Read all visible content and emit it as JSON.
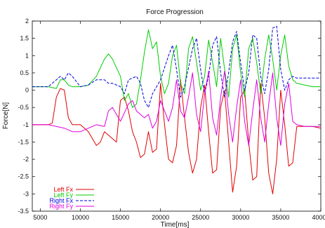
{
  "chart_data": {
    "type": "line",
    "title": "Force Progression",
    "xlabel": "Time[ms]",
    "ylabel": "Force[N]",
    "xlim": [
      4000,
      40000
    ],
    "ylim": [
      -3.5,
      2
    ],
    "xticks": [
      5000,
      10000,
      15000,
      20000,
      25000,
      30000,
      35000,
      40000
    ],
    "yticks": [
      -3.5,
      -3,
      -2.5,
      -2,
      -1.5,
      -1,
      -0.5,
      0,
      0.5,
      1,
      1.5,
      2
    ],
    "xtick_labels": [
      "5000",
      "10000",
      "15000",
      "20000",
      "25000",
      "30000",
      "35000",
      "40000"
    ],
    "ytick_labels": [
      "-3.5",
      "-3",
      "-2.5",
      "-2",
      "-1.5",
      "-1",
      "-0.5",
      "0",
      "0.5",
      "1",
      "1.5",
      "2"
    ],
    "grid": false,
    "legend_position": "bottom-left",
    "series": [
      {
        "name": "Left Fx",
        "color": "#e00000",
        "dash": "solid",
        "points": [
          [
            4000,
            -1.0
          ],
          [
            5000,
            -1.0
          ],
          [
            6000,
            -1.0
          ],
          [
            6500,
            -0.95
          ],
          [
            7000,
            -0.2
          ],
          [
            7500,
            0.05
          ],
          [
            8000,
            0.0
          ],
          [
            8500,
            -0.8
          ],
          [
            9000,
            -1.0
          ],
          [
            10000,
            -1.0
          ],
          [
            11000,
            -1.2
          ],
          [
            12000,
            -1.6
          ],
          [
            12500,
            -1.5
          ],
          [
            13000,
            -1.2
          ],
          [
            13500,
            -1.3
          ],
          [
            14500,
            -1.5
          ],
          [
            15000,
            -0.3
          ],
          [
            15500,
            -0.2
          ],
          [
            16000,
            -0.6
          ],
          [
            16500,
            -1.2
          ],
          [
            17000,
            -1.5
          ],
          [
            17500,
            -1.95
          ],
          [
            18000,
            -1.85
          ],
          [
            18500,
            -1.2
          ],
          [
            19000,
            -1.8
          ],
          [
            19500,
            -1.7
          ],
          [
            20000,
            0.2
          ],
          [
            20500,
            -1.0
          ],
          [
            21000,
            -2.0
          ],
          [
            21500,
            -2.1
          ],
          [
            22000,
            -1.6
          ],
          [
            22500,
            0.3
          ],
          [
            23000,
            -0.8
          ],
          [
            23500,
            -1.8
          ],
          [
            24000,
            -2.4
          ],
          [
            24500,
            -2.0
          ],
          [
            25000,
            -0.5
          ],
          [
            25500,
            0.15
          ],
          [
            26000,
            -1.2
          ],
          [
            26500,
            -2.4
          ],
          [
            27000,
            -2.3
          ],
          [
            27500,
            -0.5
          ],
          [
            28000,
            0.0
          ],
          [
            28500,
            -1.5
          ],
          [
            29000,
            -2.95
          ],
          [
            29500,
            -2.2
          ],
          [
            30000,
            -0.2
          ],
          [
            30500,
            0.0
          ],
          [
            31000,
            -1.5
          ],
          [
            31500,
            -2.6
          ],
          [
            32000,
            -2.5
          ],
          [
            32500,
            0.2
          ],
          [
            33000,
            -0.8
          ],
          [
            33500,
            -2.4
          ],
          [
            34000,
            -3.0
          ],
          [
            34500,
            -2.0
          ],
          [
            35000,
            0.0
          ],
          [
            35500,
            -1.0
          ],
          [
            36000,
            -2.2
          ],
          [
            36500,
            -2.1
          ],
          [
            37000,
            -1.05
          ],
          [
            38000,
            -1.05
          ],
          [
            39000,
            -1.05
          ],
          [
            40000,
            -1.1
          ]
        ]
      },
      {
        "name": "Left Fy",
        "color": "#00cc00",
        "dash": "solid",
        "points": [
          [
            4000,
            0.1
          ],
          [
            5000,
            0.1
          ],
          [
            6000,
            0.1
          ],
          [
            7000,
            0.05
          ],
          [
            7500,
            0.3
          ],
          [
            8000,
            0.3
          ],
          [
            8500,
            0.15
          ],
          [
            9000,
            0.1
          ],
          [
            10000,
            0.1
          ],
          [
            11000,
            0.15
          ],
          [
            12000,
            0.4
          ],
          [
            13000,
            0.9
          ],
          [
            13500,
            1.05
          ],
          [
            14000,
            0.9
          ],
          [
            15000,
            0.4
          ],
          [
            15500,
            -0.3
          ],
          [
            16000,
            -0.1
          ],
          [
            16500,
            -0.5
          ],
          [
            17000,
            -0.4
          ],
          [
            17500,
            0.3
          ],
          [
            18000,
            1.1
          ],
          [
            18500,
            1.75
          ],
          [
            19000,
            1.2
          ],
          [
            19500,
            1.4
          ],
          [
            20000,
            0.4
          ],
          [
            20500,
            -0.1
          ],
          [
            21000,
            0.2
          ],
          [
            21500,
            1.0
          ],
          [
            22000,
            1.3
          ],
          [
            22500,
            0.2
          ],
          [
            23000,
            -0.1
          ],
          [
            23500,
            1.2
          ],
          [
            24000,
            1.55
          ],
          [
            24500,
            0.8
          ],
          [
            25000,
            0.0
          ],
          [
            25500,
            0.4
          ],
          [
            26000,
            1.45
          ],
          [
            26500,
            0.8
          ],
          [
            27000,
            0.1
          ],
          [
            27500,
            1.5
          ],
          [
            28000,
            0.6
          ],
          [
            28500,
            -0.2
          ],
          [
            29000,
            1.2
          ],
          [
            29500,
            1.6
          ],
          [
            30000,
            0.5
          ],
          [
            30500,
            -0.2
          ],
          [
            31000,
            1.2
          ],
          [
            31500,
            1.5
          ],
          [
            32000,
            0.8
          ],
          [
            32500,
            -0.1
          ],
          [
            33000,
            0.9
          ],
          [
            33500,
            1.6
          ],
          [
            34000,
            0.9
          ],
          [
            34500,
            0.0
          ],
          [
            35000,
            1.0
          ],
          [
            35500,
            1.6
          ],
          [
            36000,
            0.7
          ],
          [
            36500,
            0.3
          ],
          [
            37000,
            0.2
          ],
          [
            38000,
            0.15
          ],
          [
            39000,
            0.1
          ],
          [
            40000,
            0.1
          ]
        ]
      },
      {
        "name": "Right Fx",
        "color": "#0000dd",
        "dash": "dashed",
        "points": [
          [
            4000,
            0.1
          ],
          [
            5000,
            0.1
          ],
          [
            6000,
            0.1
          ],
          [
            7000,
            0.3
          ],
          [
            7500,
            0.4
          ],
          [
            8000,
            0.3
          ],
          [
            8500,
            0.5
          ],
          [
            9000,
            0.4
          ],
          [
            10000,
            0.1
          ],
          [
            11000,
            0.15
          ],
          [
            12000,
            0.3
          ],
          [
            13000,
            0.3
          ],
          [
            13500,
            0.2
          ],
          [
            14000,
            0.2
          ],
          [
            15000,
            0.1
          ],
          [
            15500,
            -0.1
          ],
          [
            16000,
            0.3
          ],
          [
            17000,
            0.4
          ],
          [
            17500,
            0.2
          ],
          [
            18000,
            -0.3
          ],
          [
            18500,
            -0.5
          ],
          [
            19000,
            -0.1
          ],
          [
            20000,
            0.3
          ],
          [
            21000,
            1.0
          ],
          [
            21500,
            1.3
          ],
          [
            22000,
            0.6
          ],
          [
            22500,
            -0.2
          ],
          [
            23000,
            0.1
          ],
          [
            24000,
            1.2
          ],
          [
            24500,
            1.5
          ],
          [
            25000,
            0.6
          ],
          [
            25500,
            -0.1
          ],
          [
            26000,
            0.4
          ],
          [
            26500,
            1.3
          ],
          [
            27000,
            1.55
          ],
          [
            27500,
            0.5
          ],
          [
            28000,
            -0.2
          ],
          [
            28500,
            0.5
          ],
          [
            29000,
            1.4
          ],
          [
            29500,
            1.7
          ],
          [
            30000,
            0.8
          ],
          [
            30500,
            0.0
          ],
          [
            31000,
            0.5
          ],
          [
            31500,
            1.6
          ],
          [
            32000,
            1.5
          ],
          [
            32500,
            0.4
          ],
          [
            33000,
            -0.1
          ],
          [
            33500,
            0.6
          ],
          [
            34000,
            1.8
          ],
          [
            34500,
            1.85
          ],
          [
            35000,
            0.6
          ],
          [
            35500,
            0.0
          ],
          [
            36000,
            0.3
          ],
          [
            36500,
            0.4
          ],
          [
            37000,
            0.35
          ],
          [
            38000,
            0.35
          ],
          [
            39000,
            0.35
          ],
          [
            40000,
            0.35
          ]
        ]
      },
      {
        "name": "Right Fy",
        "color": "#e000e0",
        "dash": "solid",
        "points": [
          [
            4000,
            -1.0
          ],
          [
            5000,
            -1.0
          ],
          [
            6000,
            -1.0
          ],
          [
            7000,
            -1.05
          ],
          [
            8000,
            -1.1
          ],
          [
            9000,
            -1.2
          ],
          [
            10000,
            -1.2
          ],
          [
            11000,
            -1.1
          ],
          [
            12000,
            -1.0
          ],
          [
            13000,
            -1.05
          ],
          [
            13500,
            -0.6
          ],
          [
            14000,
            -0.5
          ],
          [
            15000,
            -0.9
          ],
          [
            16000,
            -0.4
          ],
          [
            16500,
            -0.3
          ],
          [
            17000,
            -0.6
          ],
          [
            18000,
            -0.8
          ],
          [
            18500,
            -0.7
          ],
          [
            19000,
            -1.1
          ],
          [
            19500,
            -0.9
          ],
          [
            20000,
            -0.3
          ],
          [
            20500,
            -0.6
          ],
          [
            21000,
            -0.9
          ],
          [
            21500,
            -0.5
          ],
          [
            22000,
            0.3
          ],
          [
            22500,
            -0.6
          ],
          [
            23000,
            -0.8
          ],
          [
            23500,
            -0.2
          ],
          [
            24000,
            0.5
          ],
          [
            24500,
            -0.7
          ],
          [
            25000,
            -1.2
          ],
          [
            25500,
            -0.1
          ],
          [
            26000,
            0.55
          ],
          [
            26500,
            -0.8
          ],
          [
            27000,
            -1.3
          ],
          [
            27500,
            -0.2
          ],
          [
            28000,
            0.55
          ],
          [
            28500,
            -0.7
          ],
          [
            29000,
            -1.5
          ],
          [
            29500,
            -0.5
          ],
          [
            30000,
            0.3
          ],
          [
            30500,
            -0.9
          ],
          [
            31000,
            -1.6
          ],
          [
            31500,
            -0.6
          ],
          [
            32000,
            0.3
          ],
          [
            32500,
            -0.8
          ],
          [
            33000,
            -1.5
          ],
          [
            33500,
            -0.4
          ],
          [
            34000,
            0.5
          ],
          [
            34500,
            -0.8
          ],
          [
            35000,
            -1.6
          ],
          [
            35500,
            -0.4
          ],
          [
            36000,
            0.2
          ],
          [
            36500,
            -0.9
          ],
          [
            37000,
            -1.0
          ],
          [
            38000,
            -1.05
          ],
          [
            39000,
            -1.05
          ],
          [
            40000,
            -1.05
          ]
        ]
      }
    ]
  }
}
